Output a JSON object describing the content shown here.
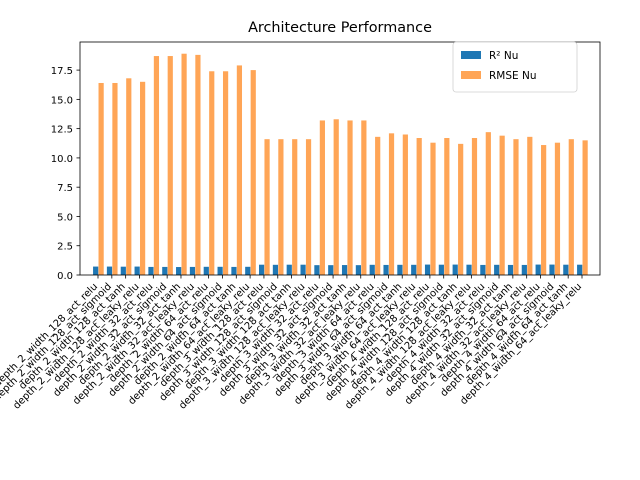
{
  "chart_data": {
    "type": "bar",
    "title": "Architecture Performance",
    "xlabel": "",
    "ylabel": "",
    "ylim": [
      0,
      19.9
    ],
    "yticks": [
      0.0,
      2.5,
      5.0,
      7.5,
      10.0,
      12.5,
      15.0,
      17.5
    ],
    "ytick_labels": [
      "0.0",
      "2.5",
      "5.0",
      "7.5",
      "10.0",
      "12.5",
      "15.0",
      "17.5"
    ],
    "legend_position": "top-right",
    "grid": false,
    "categories": [
      "depth_2_width_128_act_relu",
      "depth_2_width_128_act_sigmoid",
      "depth_2_width_128_act_tanh",
      "depth_2_width_128_act_leaky_relu",
      "depth_2_width_32_act_relu",
      "depth_2_width_32_act_sigmoid",
      "depth_2_width_32_act_tanh",
      "depth_2_width_32_act_leaky_relu",
      "depth_2_width_64_act_relu",
      "depth_2_width_64_act_sigmoid",
      "depth_2_width_64_act_tanh",
      "depth_2_width_64_act_leaky_relu",
      "depth_3_width_128_act_relu",
      "depth_3_width_128_act_sigmoid",
      "depth_3_width_128_act_tanh",
      "depth_3_width_128_act_leaky_relu",
      "depth_3_width_32_act_relu",
      "depth_3_width_32_act_sigmoid",
      "depth_3_width_32_act_tanh",
      "depth_3_width_32_act_leaky_relu",
      "depth_3_width_64_act_relu",
      "depth_3_width_64_act_sigmoid",
      "depth_3_width_64_act_tanh",
      "depth_3_width_64_act_leaky_relu",
      "depth_4_width_128_act_relu",
      "depth_4_width_128_act_sigmoid",
      "depth_4_width_128_act_tanh",
      "depth_4_width_128_act_leaky_relu",
      "depth_4_width_32_act_relu",
      "depth_4_width_32_act_sigmoid",
      "depth_4_width_32_act_tanh",
      "depth_4_width_32_act_leaky_relu",
      "depth_4_width_64_act_relu",
      "depth_4_width_64_act_sigmoid",
      "depth_4_width_64_act_tanh",
      "depth_4_width_64_act_leaky_relu"
    ],
    "series": [
      {
        "name": "R² Nu",
        "color": "#1f77b4",
        "values": [
          0.72,
          0.72,
          0.71,
          0.72,
          0.69,
          0.69,
          0.68,
          0.69,
          0.7,
          0.7,
          0.69,
          0.7,
          0.88,
          0.87,
          0.88,
          0.88,
          0.84,
          0.84,
          0.85,
          0.84,
          0.87,
          0.86,
          0.87,
          0.87,
          0.89,
          0.88,
          0.89,
          0.88,
          0.86,
          0.87,
          0.86,
          0.86,
          0.89,
          0.89,
          0.88,
          0.88
        ]
      },
      {
        "name": "RMSE Nu",
        "color": "#ffa556",
        "values": [
          16.4,
          16.4,
          16.8,
          16.5,
          18.7,
          18.7,
          18.9,
          18.8,
          17.4,
          17.4,
          17.9,
          17.5,
          11.6,
          11.6,
          11.6,
          11.6,
          13.2,
          13.3,
          13.2,
          13.2,
          11.8,
          12.1,
          12.0,
          11.7,
          11.3,
          11.7,
          11.2,
          11.7,
          12.2,
          11.9,
          11.6,
          11.8,
          11.1,
          11.3,
          11.6,
          11.5
        ]
      }
    ]
  }
}
